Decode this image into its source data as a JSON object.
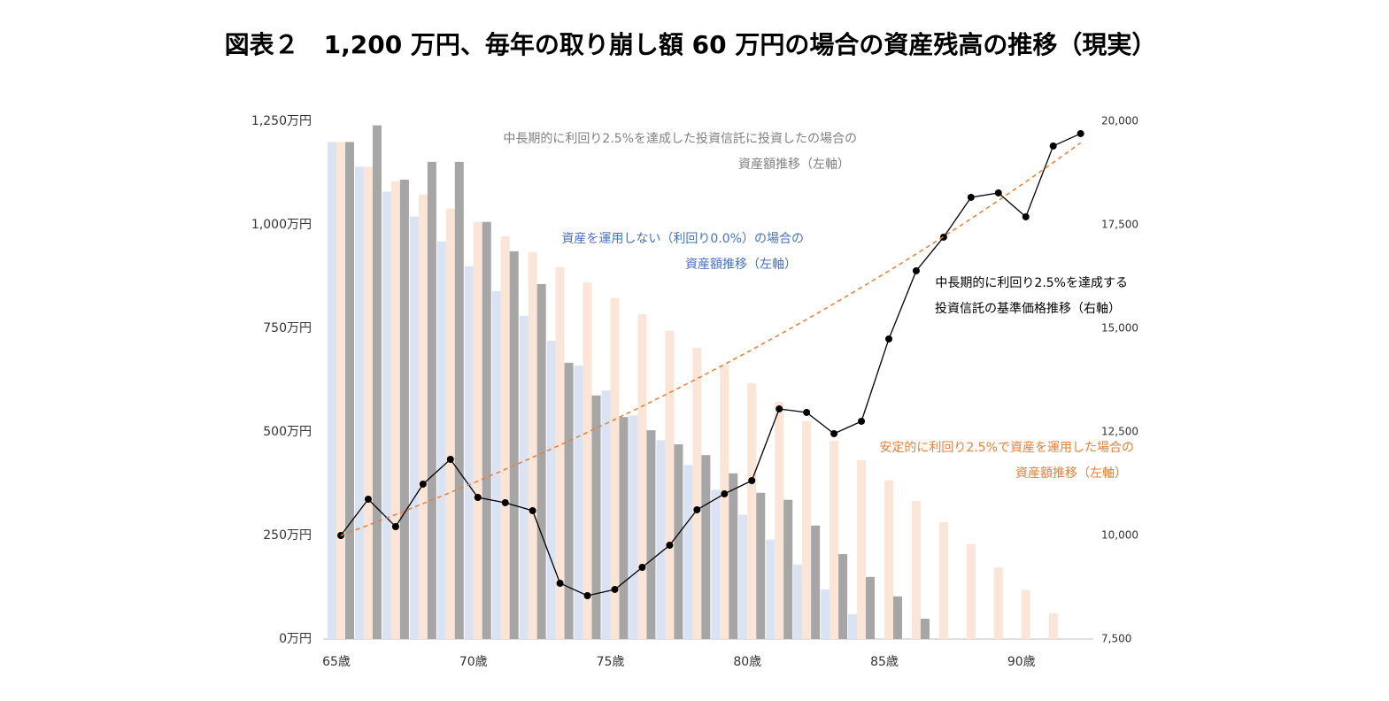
{
  "chart_data": {
    "type": "bar",
    "title": "図表２　1,200 万円、毎年の取り崩し額 60 万円の場合の資産残高の推移（現実）",
    "categories": [
      "65歳",
      null,
      null,
      null,
      null,
      "70歳",
      null,
      null,
      null,
      null,
      "75歳",
      null,
      null,
      null,
      null,
      "80歳",
      null,
      null,
      null,
      null,
      "85歳",
      null,
      null,
      null,
      null,
      "90歳",
      null,
      null
    ],
    "series": [
      {
        "type": "bar",
        "color": "#dae3f3",
        "values": [
          1200,
          1140,
          1080,
          1020,
          960,
          900,
          840,
          780,
          720,
          660,
          600,
          540,
          480,
          420,
          360,
          300,
          240,
          180,
          120,
          60,
          0,
          0,
          0,
          0,
          0,
          0,
          0,
          0
        ]
      },
      {
        "type": "bar",
        "color": "#fbe5d6",
        "values": [
          1200,
          1140,
          1105,
          1073,
          1039,
          1007,
          972,
          934,
          898,
          861,
          823,
          784,
          744,
          703,
          662,
          618,
          573,
          526,
          479,
          432,
          383,
          333,
          282,
          229,
          173,
          118,
          62,
          0
        ]
      },
      {
        "type": "bar",
        "color": "#a6a6a6",
        "values": [
          1200,
          1240,
          1109,
          1152,
          1152,
          1007,
          936,
          857,
          667,
          588,
          536,
          504,
          470,
          444,
          400,
          353,
          336,
          274,
          205,
          150,
          103,
          49,
          0,
          0,
          0,
          0,
          0,
          0
        ]
      },
      {
        "type": "line",
        "axis": "y2",
        "color": "#000000",
        "markers": true,
        "values": [
          10000,
          10876,
          10214,
          11240,
          11838,
          10919,
          10791,
          10599,
          8846,
          8547,
          8697,
          9231,
          9765,
          10620,
          11005,
          11325,
          13056,
          12971,
          12458,
          12757,
          14744,
          16390,
          17202,
          18163,
          18270,
          17693,
          19403,
          19702
        ]
      },
      {
        "type": "line",
        "axis": "y2",
        "color": "#ed7d31",
        "dashed": true,
        "values": [
          10000,
          10250,
          10506,
          10769,
          11038,
          11314,
          11597,
          11887,
          12184,
          12489,
          12801,
          13121,
          13449,
          13785,
          14130,
          14483,
          14845,
          15216,
          15597,
          15987,
          16386,
          16796,
          17216,
          17646,
          18087,
          18539,
          19003,
          19478
        ]
      }
    ],
    "ylim": [
      0,
      1250
    ],
    "yticks": [
      {
        "value": 0,
        "label": "0万円"
      },
      {
        "value": 250,
        "label": "250万円"
      },
      {
        "value": 500,
        "label": "500万円"
      },
      {
        "value": 750,
        "label": "750万円"
      },
      {
        "value": 1000,
        "label": "1,000万円"
      },
      {
        "value": 1250,
        "label": "1,250万円"
      }
    ],
    "y2lim": [
      7500,
      20000
    ],
    "y2ticks": [
      {
        "value": 7500,
        "label": "7,500"
      },
      {
        "value": 10000,
        "label": "10,000"
      },
      {
        "value": 12500,
        "label": "12,500"
      },
      {
        "value": 15000,
        "label": "15,000"
      },
      {
        "value": 17500,
        "label": "17,500"
      },
      {
        "value": 20000,
        "label": "20,000"
      }
    ],
    "grid": false,
    "annotations": [
      {
        "color": "#808080",
        "lines": [
          "中長期的に利回り2.5%を達成した投資信託に投資したの場合の",
          "資産額推移（左軸）"
        ]
      },
      {
        "color": "#4472c4",
        "lines": [
          "資産を運用しない（利回り0.0%）の場合の",
          "資産額推移（左軸）"
        ]
      },
      {
        "color": "#000000",
        "lines": [
          "中長期的に利回り2.5%を達成する",
          "投資信託の基準価格推移（右軸）"
        ]
      },
      {
        "color": "#ed7d31",
        "lines": [
          "安定的に利回り2.5%で資産を運用した場合の",
          "資産額推移（左軸）"
        ]
      }
    ]
  }
}
